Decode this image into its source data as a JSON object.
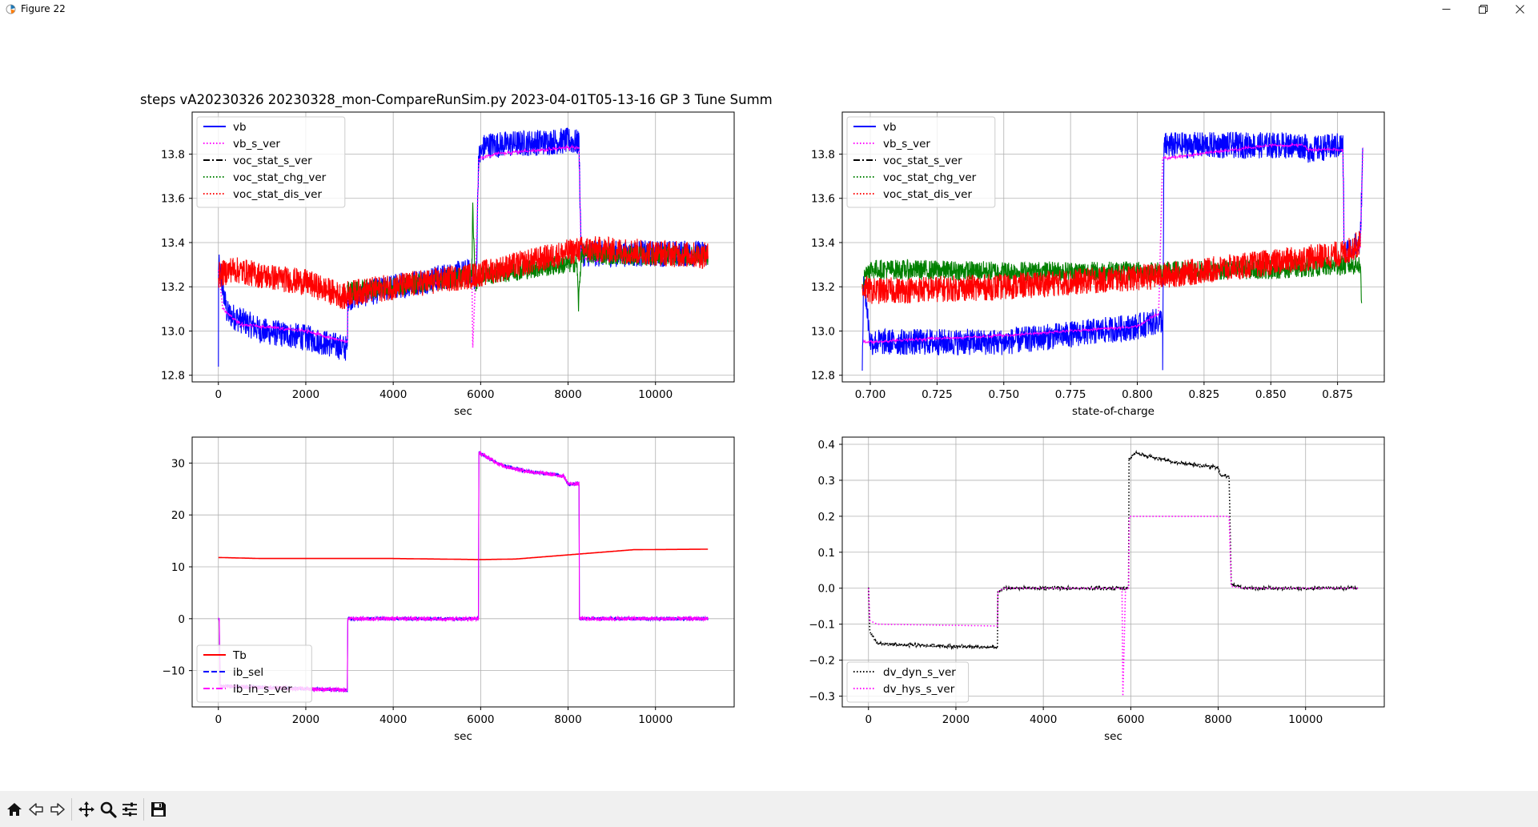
{
  "window": {
    "title": "Figure 22",
    "controls": [
      "minimize-icon",
      "restore-icon",
      "close-icon"
    ]
  },
  "figure": {
    "suptitle": "steps vA20230326 20230328_mon-CompareRunSim.py   2023-04-01T05-13-16 GP 3 Tune Summ"
  },
  "toolbar": {
    "buttons": [
      {
        "name": "home-button",
        "icon": "home-icon"
      },
      {
        "name": "back-button",
        "icon": "arrow-left-icon"
      },
      {
        "name": "forward-button",
        "icon": "arrow-right-icon"
      },
      {
        "name": "pan-button",
        "icon": "move-icon"
      },
      {
        "name": "zoom-button",
        "icon": "magnifier-icon"
      },
      {
        "name": "configure-button",
        "icon": "sliders-icon"
      },
      {
        "name": "save-button",
        "icon": "floppy-icon"
      }
    ]
  },
  "chart_data": [
    {
      "type": "line",
      "xlabel": "sec",
      "ylabel": "",
      "xlim": [
        -600,
        11800
      ],
      "ylim": [
        12.77,
        13.99
      ],
      "xticks": [
        0,
        2000,
        4000,
        6000,
        8000,
        10000
      ],
      "yticks": [
        12.8,
        13.0,
        13.2,
        13.4,
        13.6,
        13.8
      ],
      "grid": true,
      "legend_loc": "upper left",
      "series": [
        {
          "name": "vb",
          "color": "#0000ff",
          "style": "solid",
          "noise": 0.06,
          "points": [
            [
              0,
              12.82
            ],
            [
              5,
              13.3
            ],
            [
              200,
              13.08
            ],
            [
              1000,
              13.0
            ],
            [
              2000,
              12.97
            ],
            [
              2950,
              12.92
            ],
            [
              2960,
              13.15
            ],
            [
              4000,
              13.2
            ],
            [
              5800,
              13.27
            ],
            [
              5900,
              13.22
            ],
            [
              5950,
              13.78
            ],
            [
              6100,
              13.84
            ],
            [
              8000,
              13.86
            ],
            [
              8250,
              13.85
            ],
            [
              8300,
              13.35
            ],
            [
              8600,
              13.35
            ],
            [
              9500,
              13.35
            ],
            [
              11200,
              13.35
            ]
          ]
        },
        {
          "name": "vb_s_ver",
          "color": "#ff00ff",
          "style": "dotted",
          "noise": 0.006,
          "points": [
            [
              0,
              13.28
            ],
            [
              100,
              13.1
            ],
            [
              500,
              13.03
            ],
            [
              2000,
              13.0
            ],
            [
              2950,
              12.95
            ],
            [
              2960,
              13.15
            ],
            [
              4000,
              13.19
            ],
            [
              5800,
              13.24
            ],
            [
              5820,
              12.93
            ],
            [
              5880,
              13.22
            ],
            [
              5960,
              13.78
            ],
            [
              6300,
              13.8
            ],
            [
              8000,
              13.83
            ],
            [
              8250,
              13.83
            ],
            [
              8300,
              13.33
            ],
            [
              8600,
              13.32
            ],
            [
              9500,
              13.33
            ],
            [
              11200,
              13.34
            ]
          ]
        },
        {
          "name": "voc_stat_s_ver",
          "color": "#000000",
          "style": "dashdot",
          "noise": 0,
          "points": []
        },
        {
          "name": "voc_stat_chg_ver",
          "color": "#008000",
          "style": "dotted",
          "noise": 0.045,
          "points": [
            [
              2950,
              13.18
            ],
            [
              4000,
              13.2
            ],
            [
              5800,
              13.25
            ],
            [
              5820,
              13.55
            ],
            [
              5880,
              13.22
            ],
            [
              6000,
              13.25
            ],
            [
              8200,
              13.31
            ],
            [
              8240,
              13.12
            ],
            [
              8300,
              13.35
            ],
            [
              9500,
              13.34
            ],
            [
              11200,
              13.34
            ]
          ]
        },
        {
          "name": "voc_stat_dis_ver",
          "color": "#ff0000",
          "style": "dotted",
          "noise": 0.06,
          "points": [
            [
              0,
              13.25
            ],
            [
              300,
              13.28
            ],
            [
              1000,
              13.25
            ],
            [
              2000,
              13.22
            ],
            [
              2950,
              13.15
            ],
            [
              2960,
              13.17
            ],
            [
              4000,
              13.2
            ],
            [
              5800,
              13.25
            ],
            [
              8300,
              13.37
            ],
            [
              8600,
              13.37
            ],
            [
              11200,
              13.34
            ]
          ]
        }
      ]
    },
    {
      "type": "line",
      "xlabel": "state-of-charge",
      "ylabel": "",
      "xlim": [
        0.6895,
        0.8925
      ],
      "ylim": [
        12.77,
        13.99
      ],
      "xticks": [
        0.7,
        0.725,
        0.75,
        0.775,
        0.8,
        0.825,
        0.85,
        0.875
      ],
      "yticks": [
        12.8,
        13.0,
        13.2,
        13.4,
        13.6,
        13.8
      ],
      "grid": true,
      "legend_loc": "upper left",
      "series": [
        {
          "name": "vb",
          "color": "#0000ff",
          "style": "solid",
          "noise": 0.06,
          "points": [
            [
              0.697,
              12.85
            ],
            [
              0.6975,
              13.25
            ],
            [
              0.7,
              12.95
            ],
            [
              0.75,
              12.95
            ],
            [
              0.8,
              13.02
            ],
            [
              0.8095,
              13.05
            ],
            [
              0.8095,
              12.8
            ],
            [
              0.81,
              13.84
            ],
            [
              0.85,
              13.84
            ],
            [
              0.862,
              13.84
            ],
            [
              0.864,
              13.82
            ],
            [
              0.877,
              13.84
            ],
            [
              0.8775,
              13.35
            ],
            [
              0.8835,
              13.4
            ],
            [
              0.8845,
              13.84
            ]
          ]
        },
        {
          "name": "vb_s_ver",
          "color": "#ff00ff",
          "style": "dotted",
          "noise": 0.004,
          "points": [
            [
              0.6975,
              12.95
            ],
            [
              0.75,
              12.98
            ],
            [
              0.8,
              13.02
            ],
            [
              0.808,
              13.08
            ],
            [
              0.8095,
              13.78
            ],
            [
              0.85,
              13.84
            ],
            [
              0.862,
              13.84
            ],
            [
              0.864,
              13.82
            ],
            [
              0.877,
              13.82
            ],
            [
              0.8775,
              13.33
            ],
            [
              0.8835,
              13.38
            ],
            [
              0.8845,
              13.83
            ]
          ]
        },
        {
          "name": "voc_stat_s_ver",
          "color": "#000000",
          "style": "dashdot",
          "noise": 0,
          "points": []
        },
        {
          "name": "voc_stat_chg_ver",
          "color": "#008000",
          "style": "dotted",
          "noise": 0.045,
          "points": [
            [
              0.697,
              13.22
            ],
            [
              0.699,
              13.28
            ],
            [
              0.75,
              13.27
            ],
            [
              0.8095,
              13.27
            ],
            [
              0.85,
              13.28
            ],
            [
              0.8835,
              13.3
            ],
            [
              0.884,
              13.12
            ]
          ]
        },
        {
          "name": "voc_stat_dis_ver",
          "color": "#ff0000",
          "style": "dotted",
          "noise": 0.06,
          "points": [
            [
              0.697,
              13.2
            ],
            [
              0.7,
              13.18
            ],
            [
              0.75,
              13.2
            ],
            [
              0.8095,
              13.25
            ],
            [
              0.8775,
              13.35
            ],
            [
              0.8835,
              13.4
            ]
          ]
        }
      ]
    },
    {
      "type": "line",
      "xlabel": "sec",
      "ylabel": "",
      "xlim": [
        -600,
        11800
      ],
      "ylim": [
        -17,
        35
      ],
      "xticks": [
        0,
        2000,
        4000,
        6000,
        8000,
        10000
      ],
      "yticks": [
        -10,
        0,
        10,
        20,
        30
      ],
      "grid": true,
      "legend_loc": "lower left",
      "series": [
        {
          "name": "Tb",
          "color": "#ff0000",
          "style": "solid",
          "noise": 0,
          "points": [
            [
              0,
              11.8
            ],
            [
              1000,
              11.6
            ],
            [
              4000,
              11.6
            ],
            [
              6000,
              11.4
            ],
            [
              6800,
              11.5
            ],
            [
              8000,
              12.3
            ],
            [
              9500,
              13.3
            ],
            [
              11200,
              13.4
            ]
          ]
        },
        {
          "name": "ib_sel",
          "color": "#0000ff",
          "style": "dashed",
          "noise": 0.3,
          "points": [
            [
              0,
              0
            ],
            [
              20,
              0
            ],
            [
              40,
              -13
            ],
            [
              2000,
              -13.5
            ],
            [
              2950,
              -13.8
            ],
            [
              2960,
              0
            ],
            [
              5950,
              0
            ],
            [
              5960,
              32
            ],
            [
              6500,
              29.5
            ],
            [
              7000,
              28.5
            ],
            [
              7900,
              27.5
            ],
            [
              8000,
              26
            ],
            [
              8200,
              26
            ],
            [
              8250,
              26
            ],
            [
              8260,
              0
            ],
            [
              11200,
              0
            ]
          ]
        },
        {
          "name": "ib_in_s_ver",
          "color": "#ff00ff",
          "style": "dashdot",
          "noise": 0.4,
          "points": [
            [
              0,
              0
            ],
            [
              20,
              0
            ],
            [
              40,
              -13
            ],
            [
              2000,
              -13.5
            ],
            [
              2950,
              -13.8
            ],
            [
              2960,
              0
            ],
            [
              5950,
              0
            ],
            [
              5960,
              32
            ],
            [
              6500,
              29.5
            ],
            [
              7000,
              28.5
            ],
            [
              7900,
              27.5
            ],
            [
              8000,
              26
            ],
            [
              8200,
              26
            ],
            [
              8250,
              26
            ],
            [
              8260,
              0
            ],
            [
              11200,
              0
            ]
          ]
        }
      ]
    },
    {
      "type": "line",
      "xlabel": "sec",
      "ylabel": "",
      "xlim": [
        -600,
        11800
      ],
      "ylim": [
        -0.33,
        0.42
      ],
      "xticks": [
        0,
        2000,
        4000,
        6000,
        8000,
        10000
      ],
      "yticks": [
        -0.3,
        -0.2,
        -0.1,
        0.0,
        0.1,
        0.2,
        0.3,
        0.4
      ],
      "grid": true,
      "legend_loc": "lower left",
      "series": [
        {
          "name": "dv_dyn_s_ver",
          "color": "#000000",
          "style": "dotted",
          "noise": 0.004,
          "points": [
            [
              0,
              0.0
            ],
            [
              30,
              -0.12
            ],
            [
              200,
              -0.155
            ],
            [
              1500,
              -0.16
            ],
            [
              2950,
              -0.165
            ],
            [
              2960,
              -0.01
            ],
            [
              3100,
              0.0
            ],
            [
              5950,
              0.0
            ],
            [
              5960,
              0.36
            ],
            [
              6100,
              0.375
            ],
            [
              7000,
              0.35
            ],
            [
              8000,
              0.335
            ],
            [
              8050,
              0.315
            ],
            [
              8250,
              0.31
            ],
            [
              8300,
              0.01
            ],
            [
              8600,
              0.0
            ],
            [
              11200,
              0.0
            ]
          ]
        },
        {
          "name": "dv_hys_s_ver",
          "color": "#ff00ff",
          "style": "dotted",
          "noise": 0,
          "points": [
            [
              0,
              0.0
            ],
            [
              30,
              -0.09
            ],
            [
              200,
              -0.1
            ],
            [
              2950,
              -0.105
            ],
            [
              2960,
              -0.01
            ],
            [
              3100,
              0.0
            ],
            [
              5800,
              0.0
            ],
            [
              5820,
              -0.3
            ],
            [
              5880,
              0.0
            ],
            [
              5950,
              0.0
            ],
            [
              5970,
              0.2
            ],
            [
              8250,
              0.2
            ],
            [
              8300,
              0.005
            ],
            [
              8600,
              0.0
            ],
            [
              11200,
              0.0
            ]
          ]
        }
      ]
    }
  ]
}
